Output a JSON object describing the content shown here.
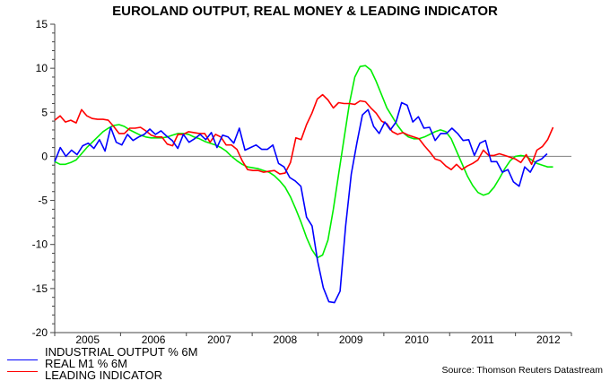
{
  "chart_data": {
    "type": "line",
    "title": "EUROLAND OUTPUT, REAL MONEY & LEADING INDICATOR",
    "xlabel": "",
    "ylabel": "",
    "xlim": [
      2005.0,
      2012.85
    ],
    "ylim": [
      -20,
      15
    ],
    "y_ticks": [
      15,
      10,
      5,
      0,
      -5,
      -10,
      -15,
      -20
    ],
    "x_tick_labels": [
      "2005",
      "2006",
      "2007",
      "2008",
      "2009",
      "2010",
      "2011",
      "2012"
    ],
    "grid": false,
    "zero_line": true,
    "legend_placement": "bottom-left",
    "source": "Source: Thomson Reuters Datastream",
    "series": [
      {
        "name": "INDUSTRIAL OUTPUT % 6M",
        "color": "#0000ff",
        "frequency": "monthly",
        "x_start": 2005.0,
        "x_end": 2012.48,
        "values": [
          -0.6,
          1.0,
          0.0,
          0.7,
          0.2,
          1.2,
          1.5,
          0.9,
          1.9,
          0.6,
          3.3,
          1.6,
          1.3,
          2.5,
          1.8,
          2.2,
          2.5,
          3.1,
          2.5,
          2.9,
          2.3,
          1.8,
          0.9,
          2.5,
          1.6,
          2.0,
          2.5,
          1.9,
          2.7,
          1.0,
          2.4,
          2.2,
          1.5,
          3.2,
          0.7,
          1.0,
          1.3,
          0.8,
          0.8,
          1.3,
          -0.8,
          -1.2,
          -2.4,
          -2.8,
          -3.4,
          -6.9,
          -7.9,
          -11.9,
          -14.9,
          -16.5,
          -16.6,
          -15.3,
          -7.9,
          -2.0,
          1.5,
          4.7,
          5.3,
          3.4,
          2.6,
          3.9,
          3.0,
          3.9,
          6.1,
          5.8,
          3.9,
          4.5,
          3.2,
          3.3,
          1.8,
          2.6,
          2.6,
          3.2,
          2.6,
          1.8,
          1.9,
          0.1,
          1.5,
          1.8,
          -0.6,
          -0.6,
          -1.8,
          -1.5,
          -2.9,
          -3.4,
          -1.2,
          -1.8,
          -0.6,
          -0.3,
          0.3
        ]
      },
      {
        "name": "REAL M1 % 6M",
        "color": "#ff0000",
        "frequency": "monthly",
        "x_start": 2005.0,
        "x_end": 2012.57,
        "values": [
          4.1,
          4.6,
          3.9,
          4.1,
          3.8,
          5.3,
          4.6,
          4.3,
          4.2,
          4.2,
          4.1,
          3.4,
          2.6,
          2.6,
          3.2,
          3.2,
          3.3,
          2.9,
          2.4,
          2.2,
          2.2,
          1.4,
          1.2,
          2.5,
          2.5,
          2.8,
          2.7,
          2.6,
          2.6,
          1.6,
          2.5,
          2.2,
          1.3,
          1.3,
          0.8,
          -0.5,
          -1.5,
          -1.6,
          -1.6,
          -1.8,
          -1.7,
          -1.6,
          -2.0,
          -1.9,
          -0.7,
          2.1,
          1.9,
          3.6,
          4.9,
          6.5,
          7.0,
          6.4,
          5.5,
          6.1,
          6.0,
          6.0,
          5.9,
          6.3,
          6.2,
          5.5,
          4.9,
          4.0,
          3.7,
          2.8,
          2.5,
          2.7,
          2.4,
          2.2,
          2.0,
          1.2,
          0.5,
          -0.3,
          -0.5,
          -1.1,
          -1.5,
          -0.9,
          -1.5,
          -1.1,
          -0.8,
          -0.4,
          0.7,
          0.1,
          0.1,
          0.3,
          0.1,
          -0.1,
          -0.3,
          -0.7,
          0.2,
          -0.9,
          0.7,
          1.1,
          1.9,
          3.3
        ]
      },
      {
        "name": "LEADING INDICATOR",
        "color": "#00ee00",
        "frequency": "monthly",
        "x_start": 2005.0,
        "x_end": 2012.57,
        "values": [
          -0.6,
          -0.9,
          -0.9,
          -0.7,
          -0.4,
          0.3,
          1.0,
          1.6,
          2.2,
          2.8,
          3.2,
          3.5,
          3.6,
          3.4,
          3.0,
          2.7,
          2.4,
          2.2,
          2.1,
          2.1,
          2.1,
          2.2,
          2.4,
          2.6,
          2.6,
          2.5,
          2.2,
          2.0,
          1.7,
          1.5,
          1.3,
          1.0,
          0.6,
          0.0,
          -0.5,
          -0.9,
          -1.2,
          -1.3,
          -1.4,
          -1.6,
          -1.8,
          -2.2,
          -2.8,
          -3.5,
          -4.6,
          -6.0,
          -7.5,
          -9.2,
          -10.6,
          -11.5,
          -11.2,
          -9.5,
          -6.0,
          -2.0,
          2.0,
          6.0,
          9.0,
          10.2,
          10.3,
          9.8,
          8.5,
          7.0,
          5.5,
          4.5,
          3.5,
          2.7,
          2.2,
          2.0,
          2.0,
          2.2,
          2.5,
          2.8,
          3.0,
          2.8,
          2.0,
          0.6,
          -0.8,
          -2.2,
          -3.3,
          -4.1,
          -4.4,
          -4.2,
          -3.5,
          -2.5,
          -1.4,
          -0.5,
          0.0,
          0.1,
          0.0,
          -0.4,
          -0.8,
          -1.0,
          -1.2,
          -1.2
        ]
      }
    ]
  }
}
